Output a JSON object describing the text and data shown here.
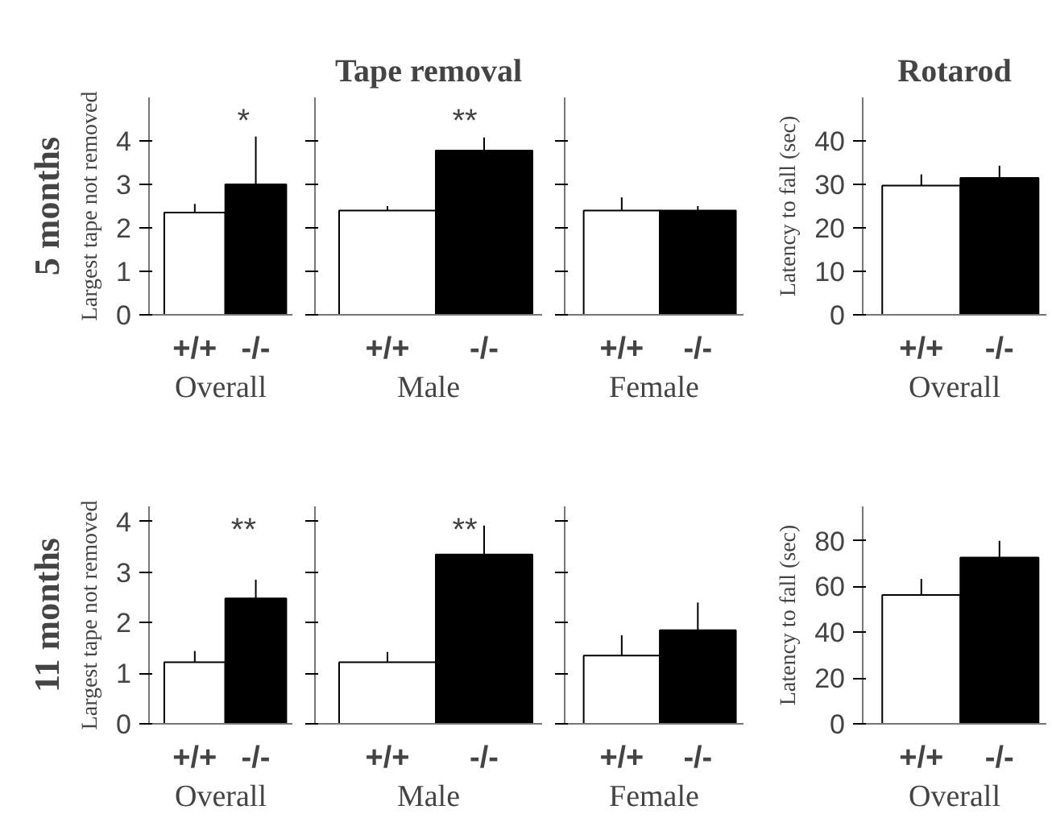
{
  "chart_data": [
    {
      "type": "bar",
      "title": "5 months",
      "ylabel": "Largest tape not removed",
      "xlabel": "Overall",
      "categories": [
        "+/+",
        "-/-"
      ],
      "values": [
        2.35,
        3.0
      ],
      "errors": [
        [
          2.35,
          2.55
        ],
        [
          3.0,
          4.1
        ]
      ],
      "colors": [
        "#ffffff",
        "#000000"
      ],
      "ylim": [
        0,
        5
      ],
      "yticks": [
        0,
        1,
        2,
        3,
        4
      ],
      "annotations": [
        "*"
      ]
    },
    {
      "type": "bar",
      "title": "Tape removal",
      "xlabel": "Male",
      "categories": [
        "+/+",
        "-/-"
      ],
      "values": [
        2.4,
        3.78
      ],
      "errors": [
        [
          2.4,
          2.5
        ],
        [
          3.78,
          4.08
        ]
      ],
      "colors": [
        "#ffffff",
        "#000000"
      ],
      "ylim": [
        0,
        5
      ],
      "yticks": [
        0,
        1,
        2,
        3,
        4
      ],
      "tick_labels": "x",
      "annotations": [
        "**"
      ]
    },
    {
      "type": "bar",
      "xlabel": "Female",
      "categories": [
        "+/+",
        "-/-"
      ],
      "values": [
        2.4,
        2.4
      ],
      "errors": [
        [
          2.4,
          2.7
        ],
        [
          2.4,
          2.5
        ]
      ],
      "colors": [
        "#ffffff",
        "#000000"
      ],
      "ylim": [
        0,
        5
      ],
      "yticks": [
        0,
        1,
        2,
        3,
        4
      ],
      "tick_labels": "x"
    },
    {
      "type": "bar",
      "title": "Rotarod",
      "ylabel": "Latency to fall (sec)",
      "xlabel": "Overall",
      "categories": [
        "+/+",
        "-/-"
      ],
      "values": [
        29.7,
        31.5
      ],
      "errors": [
        [
          29.7,
          32.3
        ],
        [
          31.5,
          34.3
        ]
      ],
      "colors": [
        "#ffffff",
        "#000000"
      ],
      "ylim": [
        0,
        50
      ],
      "yticks": [
        0,
        10,
        20,
        30,
        40
      ]
    },
    {
      "type": "bar",
      "title": "11 months",
      "ylabel": "Largest tape not removed",
      "xlabel": "Overall",
      "categories": [
        "+/+",
        "-/-"
      ],
      "values": [
        1.22,
        2.48
      ],
      "errors": [
        [
          1.22,
          1.44
        ],
        [
          2.48,
          2.85
        ]
      ],
      "colors": [
        "#ffffff",
        "#000000"
      ],
      "ylim": [
        0,
        4.3
      ],
      "yticks": [
        0,
        1,
        2,
        3,
        4
      ],
      "annotations": [
        "**"
      ]
    },
    {
      "type": "bar",
      "xlabel": "Male",
      "categories": [
        "+/+",
        "-/-"
      ],
      "values": [
        1.22,
        3.35
      ],
      "errors": [
        [
          1.22,
          1.42
        ],
        [
          3.35,
          3.92
        ]
      ],
      "colors": [
        "#ffffff",
        "#000000"
      ],
      "ylim": [
        0,
        4.3
      ],
      "yticks": [
        0,
        1,
        2,
        3,
        4
      ],
      "tick_labels": "x",
      "annotations": [
        "**"
      ]
    },
    {
      "type": "bar",
      "xlabel": "Female",
      "categories": [
        "+/+",
        "-/-"
      ],
      "values": [
        1.35,
        1.85
      ],
      "errors": [
        [
          1.35,
          1.75
        ],
        [
          1.85,
          2.4
        ]
      ],
      "colors": [
        "#ffffff",
        "#000000"
      ],
      "ylim": [
        0,
        4.3
      ],
      "yticks": [
        0,
        1,
        2,
        3,
        4
      ],
      "tick_labels": "x"
    },
    {
      "type": "bar",
      "ylabel": "Latency to fall (sec)",
      "xlabel": "Overall",
      "categories": [
        "+/+",
        "-/-"
      ],
      "values": [
        56.3,
        72.7
      ],
      "errors": [
        [
          56.3,
          63.3
        ],
        [
          72.7,
          80.0
        ]
      ],
      "colors": [
        "#ffffff",
        "#000000"
      ],
      "ylim": [
        0,
        95
      ],
      "yticks": [
        0,
        20,
        40,
        60,
        80
      ]
    }
  ]
}
